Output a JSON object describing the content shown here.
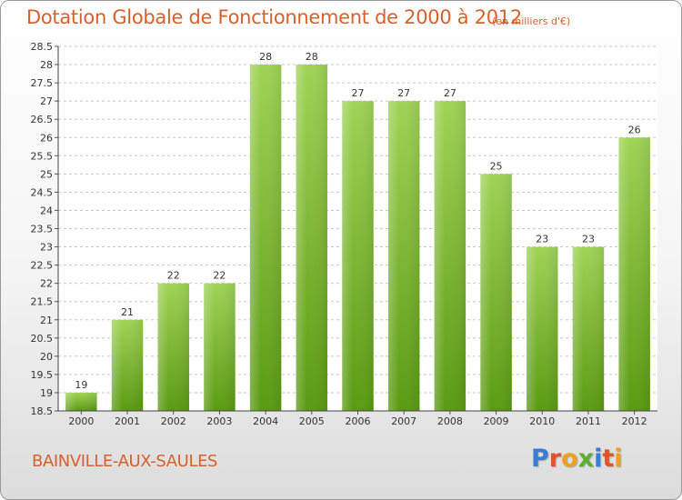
{
  "header": {
    "title": "Dotation Globale de Fonctionnement de 2000 à 2012",
    "unit": "(en milliers d'€)"
  },
  "footer": {
    "commune": "BAINVILLE-AUX-SAULES",
    "logo": {
      "letters": [
        "P",
        "r",
        "o",
        "x",
        "i",
        "t",
        "i"
      ],
      "colors": [
        "#3a7bd5",
        "#e8502a",
        "#f0a020",
        "#5cb030",
        "#3a7bd5",
        "#e8502a",
        "#f0a020"
      ]
    }
  },
  "colors": {
    "bar_top": "#9fd356",
    "bar_bottom": "#5a9a12",
    "text": "#d8602c",
    "grid": "#c8c8c8"
  },
  "chart_data": {
    "type": "bar",
    "title": "Dotation Globale de Fonctionnement de 2000 à 2012",
    "xlabel": "",
    "ylabel": "",
    "categories": [
      "2000",
      "2001",
      "2002",
      "2003",
      "2004",
      "2005",
      "2006",
      "2007",
      "2008",
      "2009",
      "2010",
      "2011",
      "2012"
    ],
    "values": [
      19,
      21,
      22,
      22,
      28,
      28,
      27,
      27,
      27,
      25,
      23,
      23,
      26
    ],
    "ylim": [
      18.5,
      28.5
    ],
    "yticks": [
      18.5,
      19,
      19.5,
      20,
      20.5,
      21,
      21.5,
      22,
      22.5,
      23,
      23.5,
      24,
      24.5,
      25,
      25.5,
      26,
      26.5,
      27,
      27.5,
      28,
      28.5
    ],
    "grid": "horizontal-dashed"
  }
}
